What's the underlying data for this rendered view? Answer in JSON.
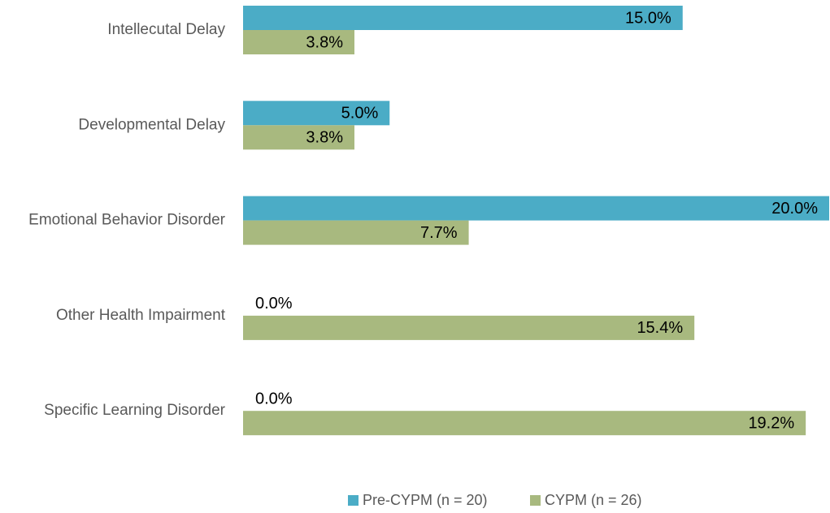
{
  "chart_data": {
    "type": "bar",
    "orientation": "horizontal",
    "categories": [
      "Intellecutal Delay",
      "Developmental Delay",
      "Emotional Behavior Disorder",
      "Other Health Impairment",
      "Specific Learning Disorder"
    ],
    "series": [
      {
        "name": "Pre-CYPM (n = 20)",
        "color": "#4bacc6",
        "values": [
          15.0,
          5.0,
          20.0,
          0.0,
          0.0
        ],
        "value_labels": [
          "15.0%",
          "5.0%",
          "20.0%",
          "0.0%",
          "0.0%"
        ]
      },
      {
        "name": "CYPM (n = 26)",
        "color": "#a8b97f",
        "values": [
          3.8,
          3.8,
          7.7,
          15.4,
          19.2
        ],
        "value_labels": [
          "3.8%",
          "3.8%",
          "7.7%",
          "15.4%",
          "19.2%"
        ]
      }
    ],
    "xlim": [
      0,
      20
    ],
    "legend": "bottom"
  }
}
